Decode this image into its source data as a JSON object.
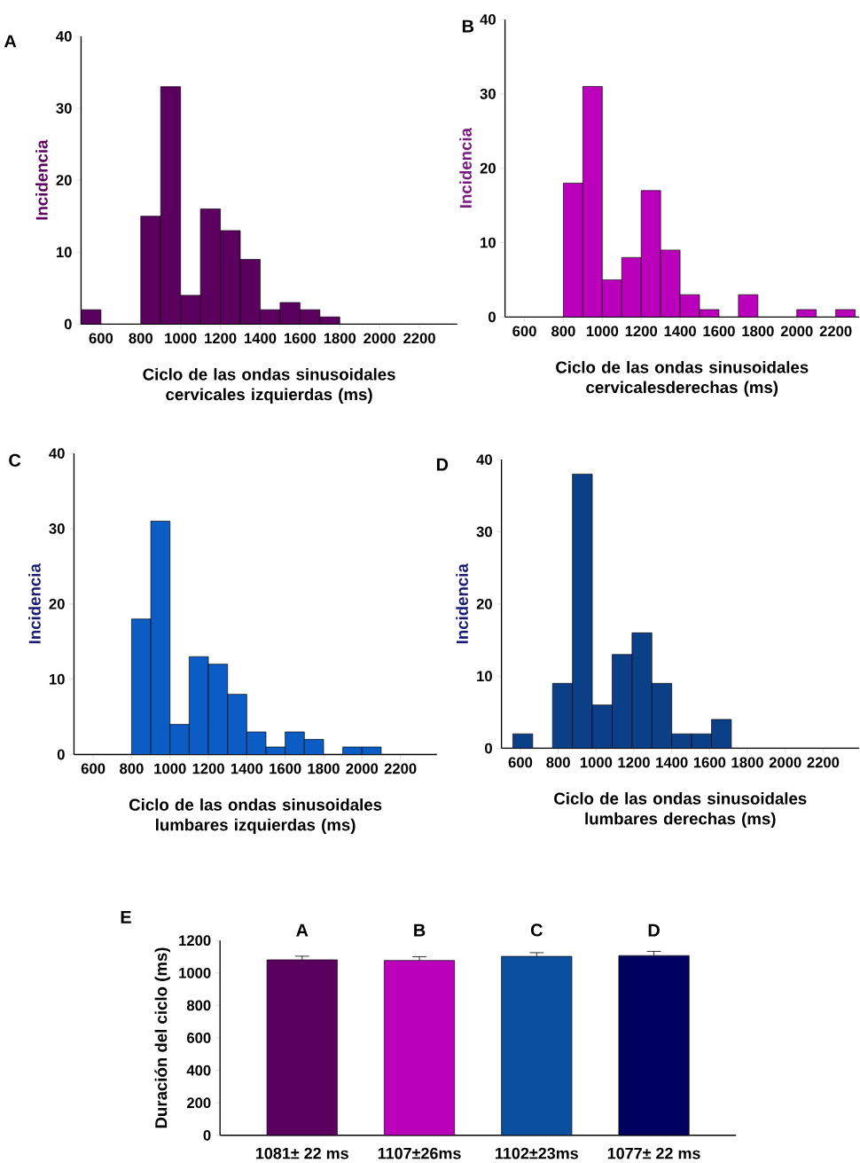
{
  "chart_data": [
    {
      "type": "histogram",
      "title": "A",
      "ylabel": "Incidencia",
      "xlabel": "Ciclo de las ondas sinusoidales cervicales izquierdas (ms)",
      "color": "#5c0060",
      "bins": [
        500,
        600,
        700,
        800,
        900,
        1000,
        1100,
        1200,
        1300,
        1400,
        1500,
        1600,
        1700,
        1800
      ],
      "values": [
        2,
        0,
        0,
        15,
        33,
        4,
        16,
        13,
        9,
        2,
        3,
        2,
        1
      ],
      "xlim": [
        500,
        2390
      ],
      "xticks": [
        600,
        800,
        1000,
        1200,
        1400,
        1600,
        1800,
        2000,
        2200
      ],
      "ylim": [
        0,
        40
      ],
      "yticks": [
        0,
        10,
        20,
        30,
        40
      ]
    },
    {
      "type": "histogram",
      "title": "B",
      "ylabel": "Incidencia",
      "xlabel": "Ciclo de las ondas sinusoidales cervicalesderechas (ms)",
      "color": "#bb00bb",
      "bins": [
        800,
        900,
        1000,
        1100,
        1200,
        1300,
        1400,
        1500,
        1600,
        1700,
        1800,
        1900,
        2000,
        2100,
        2200,
        2300
      ],
      "values": [
        18,
        31,
        5,
        8,
        17,
        9,
        3,
        1,
        0,
        3,
        0,
        0,
        1,
        0,
        1
      ],
      "xlim": [
        500,
        2320
      ],
      "xticks": [
        600,
        800,
        1000,
        1200,
        1400,
        1600,
        1800,
        2000,
        2200
      ],
      "ylim": [
        0,
        40
      ],
      "yticks": [
        0,
        10,
        20,
        30,
        40
      ]
    },
    {
      "type": "histogram",
      "title": "C",
      "ylabel": "Incidencia",
      "xlabel": "Ciclo de las ondas sinusoidales lumbares izquierdas (ms)",
      "color": "#0b5cc4",
      "bins": [
        800,
        900,
        1000,
        1100,
        1200,
        1300,
        1400,
        1500,
        1600,
        1700,
        1800,
        1900,
        2000,
        2100
      ],
      "values": [
        18,
        31,
        4,
        13,
        12,
        8,
        3,
        1,
        3,
        2,
        0,
        1,
        1
      ],
      "xlim": [
        500,
        2390
      ],
      "xticks": [
        600,
        800,
        1000,
        1200,
        1400,
        1600,
        1800,
        2000,
        2200
      ],
      "ylim": [
        0,
        40
      ],
      "yticks": [
        0,
        10,
        20,
        30,
        40
      ]
    },
    {
      "type": "histogram",
      "title": "D",
      "ylabel": "Incidencia",
      "xlabel": "Ciclo de las ondas sinusoidales lumbares derechas (ms)",
      "color": "#0b3f88",
      "bins": [
        560,
        665,
        770,
        875,
        980,
        1085,
        1190,
        1295,
        1400,
        1505,
        1610,
        1715
      ],
      "values": [
        2,
        0,
        9,
        38,
        6,
        13,
        16,
        9,
        2,
        2,
        4
      ],
      "xlim": [
        500,
        2390
      ],
      "xticks": [
        600,
        800,
        1000,
        1200,
        1400,
        1600,
        1800,
        2000,
        2200
      ],
      "ylim": [
        0,
        40
      ],
      "yticks": [
        0,
        10,
        20,
        30,
        40
      ]
    },
    {
      "type": "bar",
      "title": "E",
      "ylabel": "Duración del ciclo (ms)",
      "categories": [
        "1081± 22 ms",
        "1107±26ms",
        "1102±23ms",
        "1077± 22 ms"
      ],
      "values": [
        1081,
        1077,
        1102,
        1107
      ],
      "errors": [
        [
          1081,
          1103
        ],
        [
          1077,
          1100
        ],
        [
          1102,
          1125
        ],
        [
          1107,
          1133
        ]
      ],
      "colors": [
        "#5c0060",
        "#bb00bb",
        "#0a4fa0",
        "#000060"
      ],
      "annotations": [
        "A",
        "B",
        "C",
        "D"
      ],
      "ylim": [
        0,
        1200
      ],
      "yticks": [
        0,
        200,
        400,
        600,
        800,
        1000,
        1200
      ]
    }
  ]
}
